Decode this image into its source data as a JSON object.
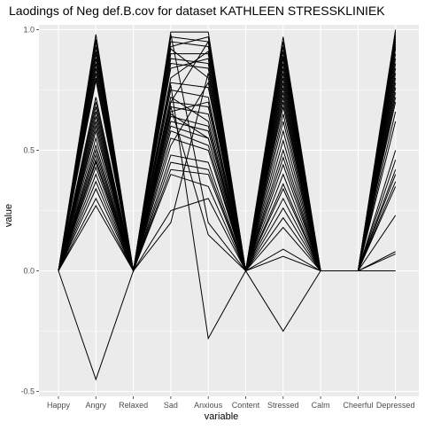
{
  "chart_data": {
    "type": "line",
    "title": "Laodings of Neg def.B.cov for dataset KATHLEEN STRESSKLINIEK",
    "xlabel": "variable",
    "ylabel": "value",
    "categories": [
      "Happy",
      "Angry",
      "Relaxed",
      "Sad",
      "Anxious",
      "Content",
      "Stressed",
      "Calm",
      "Cheerful",
      "Depressed"
    ],
    "ylim": [
      -0.52,
      1.02
    ],
    "yticks": [
      -0.5,
      0.0,
      0.5,
      1.0
    ],
    "ytick_labels": [
      "-0.5",
      "0.0",
      "0.5",
      "1.0"
    ],
    "grid": true,
    "series": [
      {
        "values": [
          0,
          0.98,
          0,
          0.99,
          0.99,
          0,
          0.97,
          0,
          0,
          1.0
        ]
      },
      {
        "values": [
          0,
          0.96,
          0,
          0.97,
          0.95,
          0,
          0.95,
          0,
          0,
          0.99
        ]
      },
      {
        "values": [
          0,
          0.95,
          0,
          0.95,
          0.93,
          0,
          0.93,
          0,
          0,
          0.98
        ]
      },
      {
        "values": [
          0,
          0.93,
          0,
          0.93,
          0.97,
          0,
          0.91,
          0,
          0,
          0.97
        ]
      },
      {
        "values": [
          0,
          0.91,
          0,
          0.9,
          0.9,
          0,
          0.89,
          0,
          0,
          0.96
        ]
      },
      {
        "values": [
          0,
          0.9,
          0,
          0.88,
          0.86,
          0,
          0.88,
          0,
          0,
          0.95
        ]
      },
      {
        "values": [
          0,
          0.88,
          0,
          0.86,
          0.84,
          0,
          0.86,
          0,
          0,
          0.94
        ]
      },
      {
        "values": [
          0,
          0.86,
          0,
          0.92,
          0.8,
          0,
          0.84,
          0,
          0,
          0.93
        ]
      },
      {
        "values": [
          0,
          0.84,
          0,
          0.84,
          0.88,
          0,
          0.82,
          0,
          0,
          0.92
        ]
      },
      {
        "values": [
          0,
          0.82,
          0,
          0.8,
          0.91,
          0,
          0.8,
          0,
          0,
          0.9
        ]
      },
      {
        "values": [
          0,
          0.8,
          0,
          0.78,
          0.76,
          0,
          0.78,
          0,
          0,
          0.88
        ]
      },
      {
        "values": [
          0,
          0.79,
          0,
          0.75,
          0.72,
          0,
          0.76,
          0,
          0,
          0.86
        ]
      },
      {
        "values": [
          0,
          0.72,
          0,
          0.7,
          0.68,
          0,
          0.74,
          0,
          0,
          0.84
        ]
      },
      {
        "values": [
          0,
          0.7,
          0,
          0.68,
          0.65,
          0,
          0.72,
          0,
          0,
          0.82
        ]
      },
      {
        "values": [
          0,
          0.68,
          0,
          0.66,
          0.7,
          0,
          0.7,
          0,
          0,
          0.8
        ]
      },
      {
        "values": [
          0,
          0.66,
          0,
          0.72,
          0.62,
          0,
          0.68,
          0,
          0,
          0.78
        ]
      },
      {
        "values": [
          0,
          0.64,
          0,
          0.64,
          0.6,
          0,
          0.65,
          0,
          0,
          0.76
        ]
      },
      {
        "values": [
          0,
          0.62,
          0,
          0.62,
          0.58,
          0,
          0.62,
          0,
          0,
          0.74
        ]
      },
      {
        "values": [
          0,
          0.6,
          0,
          0.6,
          0.55,
          0,
          0.58,
          0,
          0,
          0.72
        ]
      },
      {
        "values": [
          0,
          0.58,
          0,
          0.58,
          0.52,
          0,
          0.54,
          0,
          0,
          0.7
        ]
      },
      {
        "values": [
          0,
          0.55,
          0,
          0.55,
          0.5,
          0,
          0.5,
          0,
          0,
          0.66
        ]
      },
      {
        "values": [
          0,
          0.52,
          0,
          0.52,
          0.78,
          0,
          0.47,
          0,
          0,
          0.62
        ]
      },
      {
        "values": [
          0,
          0.5,
          0,
          0.48,
          0.45,
          0,
          0.44,
          0,
          0,
          0.5
        ]
      },
      {
        "values": [
          0,
          0.48,
          0,
          0.45,
          0.42,
          0,
          0.4,
          0,
          0,
          0.46
        ]
      },
      {
        "values": [
          0,
          0.46,
          0,
          0.42,
          0.4,
          0,
          0.36,
          0,
          0,
          0.42
        ]
      },
      {
        "values": [
          0,
          0.43,
          0,
          0.4,
          0.35,
          0,
          0.34,
          0,
          0,
          0.4
        ]
      },
      {
        "values": [
          0,
          0.4,
          0,
          0.25,
          0.3,
          0,
          0.3,
          0,
          0,
          0.37
        ]
      },
      {
        "values": [
          0,
          0.37,
          0,
          0.2,
          0.82,
          0,
          0.26,
          0,
          0,
          0.35
        ]
      },
      {
        "values": [
          0,
          0.34,
          0,
          0.68,
          0.15,
          0,
          0.22,
          0,
          0,
          0.23
        ]
      },
      {
        "values": [
          0,
          0.3,
          0,
          0.65,
          0.55,
          0,
          0.18,
          0,
          0,
          0.08
        ]
      },
      {
        "values": [
          0,
          0.27,
          0,
          0.98,
          0.2,
          0,
          0.09,
          0,
          0,
          0.07
        ]
      },
      {
        "values": [
          0,
          0.45,
          0,
          0.77,
          -0.28,
          0,
          0.06,
          0,
          0,
          0.0
        ]
      },
      {
        "values": [
          0,
          -0.45,
          0,
          0.7,
          0.95,
          0,
          -0.25,
          0,
          0,
          0.0
        ]
      }
    ]
  }
}
